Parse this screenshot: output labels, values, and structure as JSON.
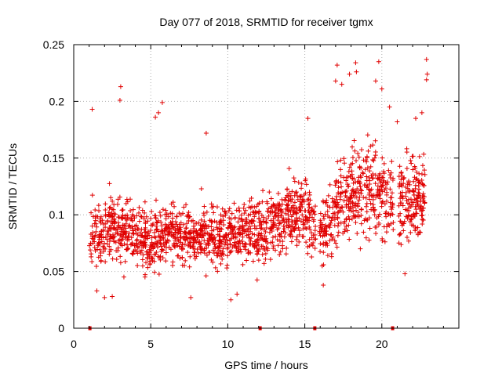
{
  "chart_data": {
    "type": "scatter",
    "title": "Day 077 of 2018, SRMTID for receiver tgmx",
    "xlabel": "GPS time / hours",
    "ylabel": "SRMTID / TECUs",
    "xlim": [
      0,
      25
    ],
    "ylim": [
      0,
      0.25
    ],
    "x_ticks": [
      0,
      5,
      10,
      15,
      20
    ],
    "y_ticks": [
      0,
      0.05,
      0.1,
      0.15,
      0.2,
      0.25
    ],
    "x_tick_labels": [
      "0",
      "5",
      "10",
      "15",
      "20"
    ],
    "y_tick_labels": [
      "0",
      "0.05",
      "0.1",
      "0.15",
      "0.2",
      "0.25"
    ],
    "grid": true,
    "marker": "+",
    "color": "#e00000",
    "series": [
      {
        "name": "SRMTID",
        "profile": [
          {
            "x": 1.0,
            "y": 0.082,
            "spread": 0.02,
            "n": 70
          },
          {
            "x": 2.0,
            "y": 0.086,
            "spread": 0.022,
            "n": 90
          },
          {
            "x": 3.0,
            "y": 0.09,
            "spread": 0.024,
            "n": 90
          },
          {
            "x": 4.0,
            "y": 0.082,
            "spread": 0.022,
            "n": 90
          },
          {
            "x": 5.0,
            "y": 0.076,
            "spread": 0.022,
            "n": 90
          },
          {
            "x": 6.0,
            "y": 0.086,
            "spread": 0.022,
            "n": 90
          },
          {
            "x": 7.0,
            "y": 0.082,
            "spread": 0.02,
            "n": 90
          },
          {
            "x": 8.0,
            "y": 0.08,
            "spread": 0.02,
            "n": 90
          },
          {
            "x": 9.0,
            "y": 0.085,
            "spread": 0.02,
            "n": 90
          },
          {
            "x": 10.0,
            "y": 0.08,
            "spread": 0.022,
            "n": 90
          },
          {
            "x": 11.0,
            "y": 0.085,
            "spread": 0.022,
            "n": 90
          },
          {
            "x": 12.0,
            "y": 0.085,
            "spread": 0.024,
            "n": 90
          },
          {
            "x": 13.0,
            "y": 0.095,
            "spread": 0.024,
            "n": 90
          },
          {
            "x": 14.0,
            "y": 0.1,
            "spread": 0.024,
            "n": 90
          },
          {
            "x": 15.0,
            "y": 0.105,
            "spread": 0.026,
            "n": 90
          },
          {
            "x": 16.0,
            "y": 0.08,
            "spread": 0.024,
            "n": 80
          },
          {
            "x": 17.0,
            "y": 0.105,
            "spread": 0.03,
            "n": 90
          },
          {
            "x": 18.0,
            "y": 0.12,
            "spread": 0.032,
            "n": 90
          },
          {
            "x": 19.0,
            "y": 0.12,
            "spread": 0.032,
            "n": 90
          },
          {
            "x": 20.0,
            "y": 0.118,
            "spread": 0.032,
            "n": 90
          },
          {
            "x": 21.0,
            "y": 0.11,
            "spread": 0.03,
            "n": 90
          },
          {
            "x": 22.0,
            "y": 0.115,
            "spread": 0.03,
            "n": 90
          },
          {
            "x": 22.8,
            "y": 0.12,
            "spread": 0.03,
            "n": 40
          }
        ],
        "gaps": [
          [
            15.7,
            15.95
          ],
          [
            20.75,
            21.1
          ]
        ],
        "outliers": [
          {
            "x": 3.05,
            "y": 0.213
          },
          {
            "x": 3.0,
            "y": 0.201
          },
          {
            "x": 1.2,
            "y": 0.193
          },
          {
            "x": 5.75,
            "y": 0.199
          },
          {
            "x": 5.5,
            "y": 0.19
          },
          {
            "x": 5.3,
            "y": 0.186
          },
          {
            "x": 8.6,
            "y": 0.172
          },
          {
            "x": 15.2,
            "y": 0.185
          },
          {
            "x": 17.0,
            "y": 0.218
          },
          {
            "x": 17.1,
            "y": 0.232
          },
          {
            "x": 17.4,
            "y": 0.215
          },
          {
            "x": 17.9,
            "y": 0.224
          },
          {
            "x": 18.3,
            "y": 0.234
          },
          {
            "x": 18.35,
            "y": 0.226
          },
          {
            "x": 19.8,
            "y": 0.235
          },
          {
            "x": 19.6,
            "y": 0.218
          },
          {
            "x": 20.0,
            "y": 0.211
          },
          {
            "x": 20.5,
            "y": 0.195
          },
          {
            "x": 21.0,
            "y": 0.182
          },
          {
            "x": 22.2,
            "y": 0.185
          },
          {
            "x": 22.9,
            "y": 0.237
          },
          {
            "x": 22.95,
            "y": 0.224
          },
          {
            "x": 22.9,
            "y": 0.219
          },
          {
            "x": 22.6,
            "y": 0.19
          },
          {
            "x": 1.5,
            "y": 0.033
          },
          {
            "x": 2.0,
            "y": 0.027
          },
          {
            "x": 2.5,
            "y": 0.028
          },
          {
            "x": 7.6,
            "y": 0.027
          },
          {
            "x": 10.2,
            "y": 0.025
          },
          {
            "x": 10.6,
            "y": 0.03
          },
          {
            "x": 16.2,
            "y": 0.038
          },
          {
            "x": 21.5,
            "y": 0.048
          }
        ],
        "zero_markers": [
          1.05,
          12.1,
          15.65,
          20.7
        ]
      }
    ]
  }
}
